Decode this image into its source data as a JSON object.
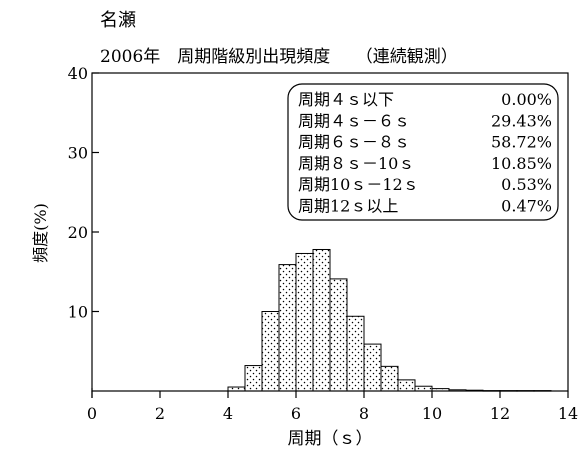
{
  "chart_data": {
    "type": "bar",
    "station": "名瀬",
    "title": "2006年　周期階級別出現頻度　　（連続観測）",
    "xlabel": "周期（ｓ）",
    "ylabel": "頻度(%)",
    "xlim": [
      0,
      14
    ],
    "ylim": [
      0,
      40
    ],
    "xticks": [
      0,
      2,
      4,
      6,
      8,
      10,
      12,
      14
    ],
    "yticks": [
      10,
      20,
      30,
      40
    ],
    "bin_width": 0.5,
    "bins": [
      {
        "x0": 4.0,
        "value": 0.5
      },
      {
        "x0": 4.5,
        "value": 3.2
      },
      {
        "x0": 5.0,
        "value": 10.0
      },
      {
        "x0": 5.5,
        "value": 15.9
      },
      {
        "x0": 6.0,
        "value": 17.3
      },
      {
        "x0": 6.5,
        "value": 17.8
      },
      {
        "x0": 7.0,
        "value": 14.1
      },
      {
        "x0": 7.5,
        "value": 9.4
      },
      {
        "x0": 8.0,
        "value": 5.9
      },
      {
        "x0": 8.5,
        "value": 3.1
      },
      {
        "x0": 9.0,
        "value": 1.4
      },
      {
        "x0": 9.5,
        "value": 0.6
      },
      {
        "x0": 10.0,
        "value": 0.3
      },
      {
        "x0": 10.5,
        "value": 0.15
      },
      {
        "x0": 11.0,
        "value": 0.1
      },
      {
        "x0": 11.5,
        "value": 0.05
      },
      {
        "x0": 12.0,
        "value": 0.05
      },
      {
        "x0": 12.5,
        "value": 0.05
      },
      {
        "x0": 13.0,
        "value": 0.05
      }
    ],
    "legend": [
      {
        "label": "周期４ｓ以下",
        "value": "0.00%"
      },
      {
        "label": "周期４ｓ－６ｓ",
        "value": "29.43%"
      },
      {
        "label": "周期６ｓ－８ｓ",
        "value": "58.72%"
      },
      {
        "label": "周期８ｓ－10ｓ",
        "value": "10.85%"
      },
      {
        "label": "周期10ｓ－12ｓ",
        "value": "0.53%"
      },
      {
        "label": "周期12ｓ以上",
        "value": "0.47%"
      }
    ]
  }
}
